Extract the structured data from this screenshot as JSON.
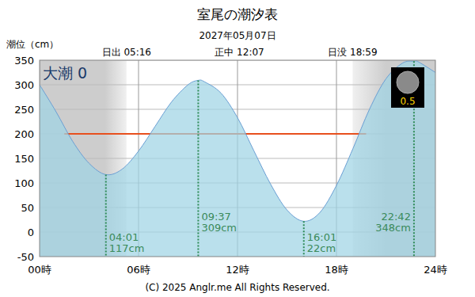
{
  "chart_data": {
    "type": "line",
    "title": "室尾の潮汐表",
    "subtitle": "2027年05月07日",
    "y_label": "潮位（cm）",
    "tide_name": "大潮 0",
    "moon_age": "0.5",
    "copyright": "(C) 2025 Anglr.me All Rights Reserved.",
    "x": [
      0,
      1,
      2,
      3,
      4.02,
      5,
      6,
      7,
      8,
      9,
      9.62,
      10,
      11,
      12,
      13,
      14,
      15,
      16.02,
      17,
      18,
      19,
      20,
      21,
      22,
      22.7,
      23,
      24
    ],
    "values": [
      300,
      245,
      185,
      140,
      117,
      128,
      165,
      215,
      265,
      300,
      309,
      306,
      283,
      233,
      165,
      98,
      45,
      22,
      40,
      95,
      170,
      250,
      312,
      344,
      348,
      346,
      325
    ],
    "color": "#6a9fd4",
    "xlim": [
      0,
      24
    ],
    "xticks": [
      {
        "value": 0,
        "label": "00時"
      },
      {
        "value": 6,
        "label": "06時"
      },
      {
        "value": 12,
        "label": "12時"
      },
      {
        "value": 18,
        "label": "18時"
      },
      {
        "value": 24,
        "label": "24時"
      }
    ],
    "ylim": [
      -50,
      350
    ],
    "yticks": [
      -50,
      0,
      50,
      100,
      150,
      200,
      250,
      300,
      350
    ],
    "grid": true,
    "sun": [
      {
        "x": 5.27,
        "label": "日出 05:16"
      },
      {
        "x": 12.12,
        "label": "正中 12:07"
      },
      {
        "x": 18.98,
        "label": "日没 18:59"
      }
    ],
    "reference_line": {
      "value": 200,
      "x": [
        1.5,
        19.8
      ],
      "color": "#e8501e"
    },
    "annotations": [
      {
        "x": 4.02,
        "time": "04:01",
        "value": 117,
        "label": "117cm"
      },
      {
        "x": 9.62,
        "time": "09:37",
        "value": 309,
        "label": "309cm"
      },
      {
        "x": 16.02,
        "time": "16:01",
        "value": 22,
        "label": "22cm"
      },
      {
        "x": 22.7,
        "time": "22:42",
        "value": 348,
        "label": "348cm"
      }
    ]
  }
}
